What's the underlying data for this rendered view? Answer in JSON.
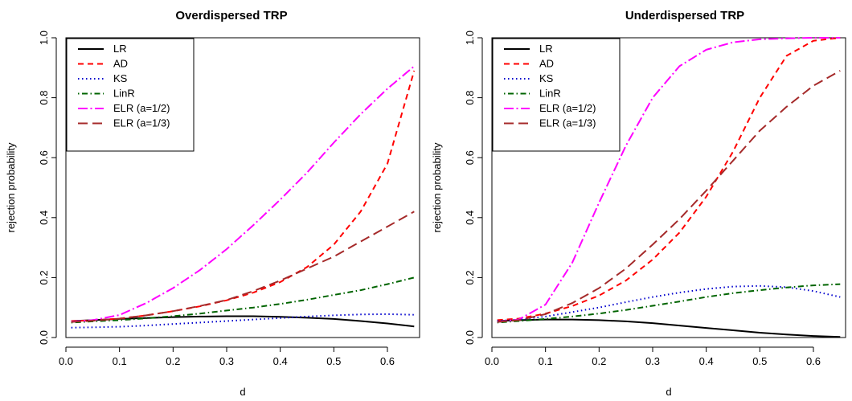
{
  "chart_data": [
    {
      "type": "line",
      "title": "Overdispersed TRP",
      "xlabel": "d",
      "ylabel": "rejection probability",
      "xlim": [
        0.0,
        0.66
      ],
      "ylim": [
        0.0,
        1.0
      ],
      "xticks": [
        "0.0",
        "0.1",
        "0.2",
        "0.3",
        "0.4",
        "0.5",
        "0.6"
      ],
      "yticks": [
        "0.0",
        "0.2",
        "0.4",
        "0.6",
        "0.8",
        "1.0"
      ],
      "legend_position": "top-left",
      "grid": false,
      "x": [
        0.01,
        0.05,
        0.1,
        0.15,
        0.2,
        0.25,
        0.3,
        0.35,
        0.4,
        0.45,
        0.5,
        0.55,
        0.6,
        0.65
      ],
      "series": [
        {
          "name": "LR",
          "color": "#000000",
          "dash": "solid",
          "values": [
            0.055,
            0.058,
            0.062,
            0.065,
            0.068,
            0.07,
            0.071,
            0.071,
            0.069,
            0.066,
            0.062,
            0.055,
            0.047,
            0.037
          ]
        },
        {
          "name": "AD",
          "color": "#ff0000",
          "dash": "dashed",
          "values": [
            0.055,
            0.057,
            0.063,
            0.074,
            0.088,
            0.104,
            0.124,
            0.15,
            0.185,
            0.235,
            0.31,
            0.42,
            0.58,
            0.89
          ]
        },
        {
          "name": "KS",
          "color": "#0000cd",
          "dash": "dotted",
          "values": [
            0.033,
            0.034,
            0.036,
            0.04,
            0.045,
            0.05,
            0.055,
            0.06,
            0.065,
            0.07,
            0.074,
            0.077,
            0.078,
            0.076
          ]
        },
        {
          "name": "LinR",
          "color": "#006400",
          "dash": "dotdash",
          "values": [
            0.05,
            0.054,
            0.058,
            0.064,
            0.071,
            0.08,
            0.09,
            0.1,
            0.112,
            0.126,
            0.142,
            0.158,
            0.178,
            0.2
          ]
        },
        {
          "name": "ELR (a=1/2)",
          "color": "#ff00ff",
          "dash": "longdotdash",
          "values": [
            0.053,
            0.058,
            0.075,
            0.115,
            0.165,
            0.225,
            0.295,
            0.375,
            0.46,
            0.55,
            0.65,
            0.745,
            0.83,
            0.905
          ]
        },
        {
          "name": "ELR (a=1/3)",
          "color": "#a52a2a",
          "dash": "longdash",
          "values": [
            0.052,
            0.056,
            0.063,
            0.074,
            0.088,
            0.105,
            0.125,
            0.155,
            0.19,
            0.23,
            0.27,
            0.32,
            0.37,
            0.42
          ]
        }
      ]
    },
    {
      "type": "line",
      "title": "Underdispersed TRP",
      "xlabel": "d",
      "ylabel": "rejection probability",
      "xlim": [
        0.0,
        0.66
      ],
      "ylim": [
        0.0,
        1.0
      ],
      "xticks": [
        "0.0",
        "0.1",
        "0.2",
        "0.3",
        "0.4",
        "0.5",
        "0.6"
      ],
      "yticks": [
        "0.0",
        "0.2",
        "0.4",
        "0.6",
        "0.8",
        "1.0"
      ],
      "legend_position": "top-left",
      "grid": false,
      "x": [
        0.01,
        0.05,
        0.1,
        0.15,
        0.2,
        0.25,
        0.3,
        0.35,
        0.4,
        0.45,
        0.5,
        0.55,
        0.6,
        0.65
      ],
      "series": [
        {
          "name": "LR",
          "color": "#000000",
          "dash": "solid",
          "values": [
            0.055,
            0.058,
            0.06,
            0.06,
            0.058,
            0.054,
            0.048,
            0.04,
            0.032,
            0.024,
            0.016,
            0.01,
            0.005,
            0.002
          ]
        },
        {
          "name": "AD",
          "color": "#ff0000",
          "dash": "dashed",
          "values": [
            0.058,
            0.063,
            0.08,
            0.105,
            0.14,
            0.19,
            0.26,
            0.35,
            0.47,
            0.62,
            0.8,
            0.94,
            0.99,
            1.0
          ]
        },
        {
          "name": "KS",
          "color": "#0000cd",
          "dash": "dotted",
          "values": [
            0.055,
            0.06,
            0.07,
            0.085,
            0.1,
            0.118,
            0.135,
            0.15,
            0.162,
            0.17,
            0.172,
            0.168,
            0.155,
            0.135
          ]
        },
        {
          "name": "LinR",
          "color": "#006400",
          "dash": "dotdash",
          "values": [
            0.05,
            0.055,
            0.062,
            0.07,
            0.08,
            0.092,
            0.106,
            0.12,
            0.135,
            0.148,
            0.158,
            0.167,
            0.174,
            0.178
          ]
        },
        {
          "name": "ELR (a=1/2)",
          "color": "#ff00ff",
          "dash": "longdotdash",
          "values": [
            0.052,
            0.06,
            0.11,
            0.25,
            0.45,
            0.64,
            0.8,
            0.905,
            0.96,
            0.985,
            0.995,
            0.998,
            1.0,
            1.0
          ]
        },
        {
          "name": "ELR (a=1/3)",
          "color": "#a52a2a",
          "dash": "longdash",
          "values": [
            0.052,
            0.058,
            0.078,
            0.115,
            0.165,
            0.23,
            0.31,
            0.395,
            0.49,
            0.59,
            0.69,
            0.77,
            0.84,
            0.89
          ]
        }
      ]
    }
  ]
}
